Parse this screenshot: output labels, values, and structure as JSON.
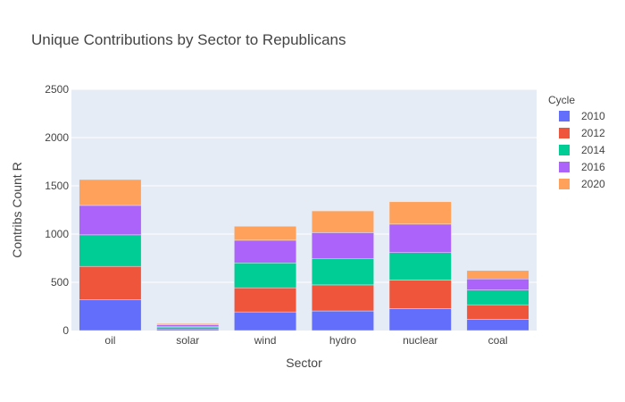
{
  "chart_data": {
    "type": "bar",
    "stacked": true,
    "title": "Unique Contributions by Sector to Republicans",
    "xlabel": "Sector",
    "ylabel": "Contribs Count R",
    "categories": [
      "oil",
      "solar",
      "wind",
      "hydro",
      "nuclear",
      "coal"
    ],
    "ylim": [
      0,
      2500
    ],
    "yticks": [
      0,
      500,
      1000,
      1500,
      2000,
      2500
    ],
    "yticklabels": [
      "0",
      "500",
      "1000",
      "1500",
      "2000",
      "2500"
    ],
    "grid": true,
    "legend": {
      "title": "Cycle",
      "placement": "right"
    },
    "series": [
      {
        "name": "2010",
        "color": "#636efa",
        "values": [
          318,
          17,
          193,
          203,
          228,
          117
        ]
      },
      {
        "name": "2012",
        "color": "#ef553b",
        "values": [
          347,
          13,
          250,
          270,
          295,
          150
        ]
      },
      {
        "name": "2014",
        "color": "#00cc96",
        "values": [
          327,
          14,
          258,
          270,
          285,
          153
        ]
      },
      {
        "name": "2016",
        "color": "#ab63fa",
        "values": [
          305,
          14,
          235,
          272,
          295,
          115
        ]
      },
      {
        "name": "2020",
        "color": "#ffa15a",
        "values": [
          268,
          14,
          145,
          225,
          232,
          87
        ]
      }
    ]
  }
}
